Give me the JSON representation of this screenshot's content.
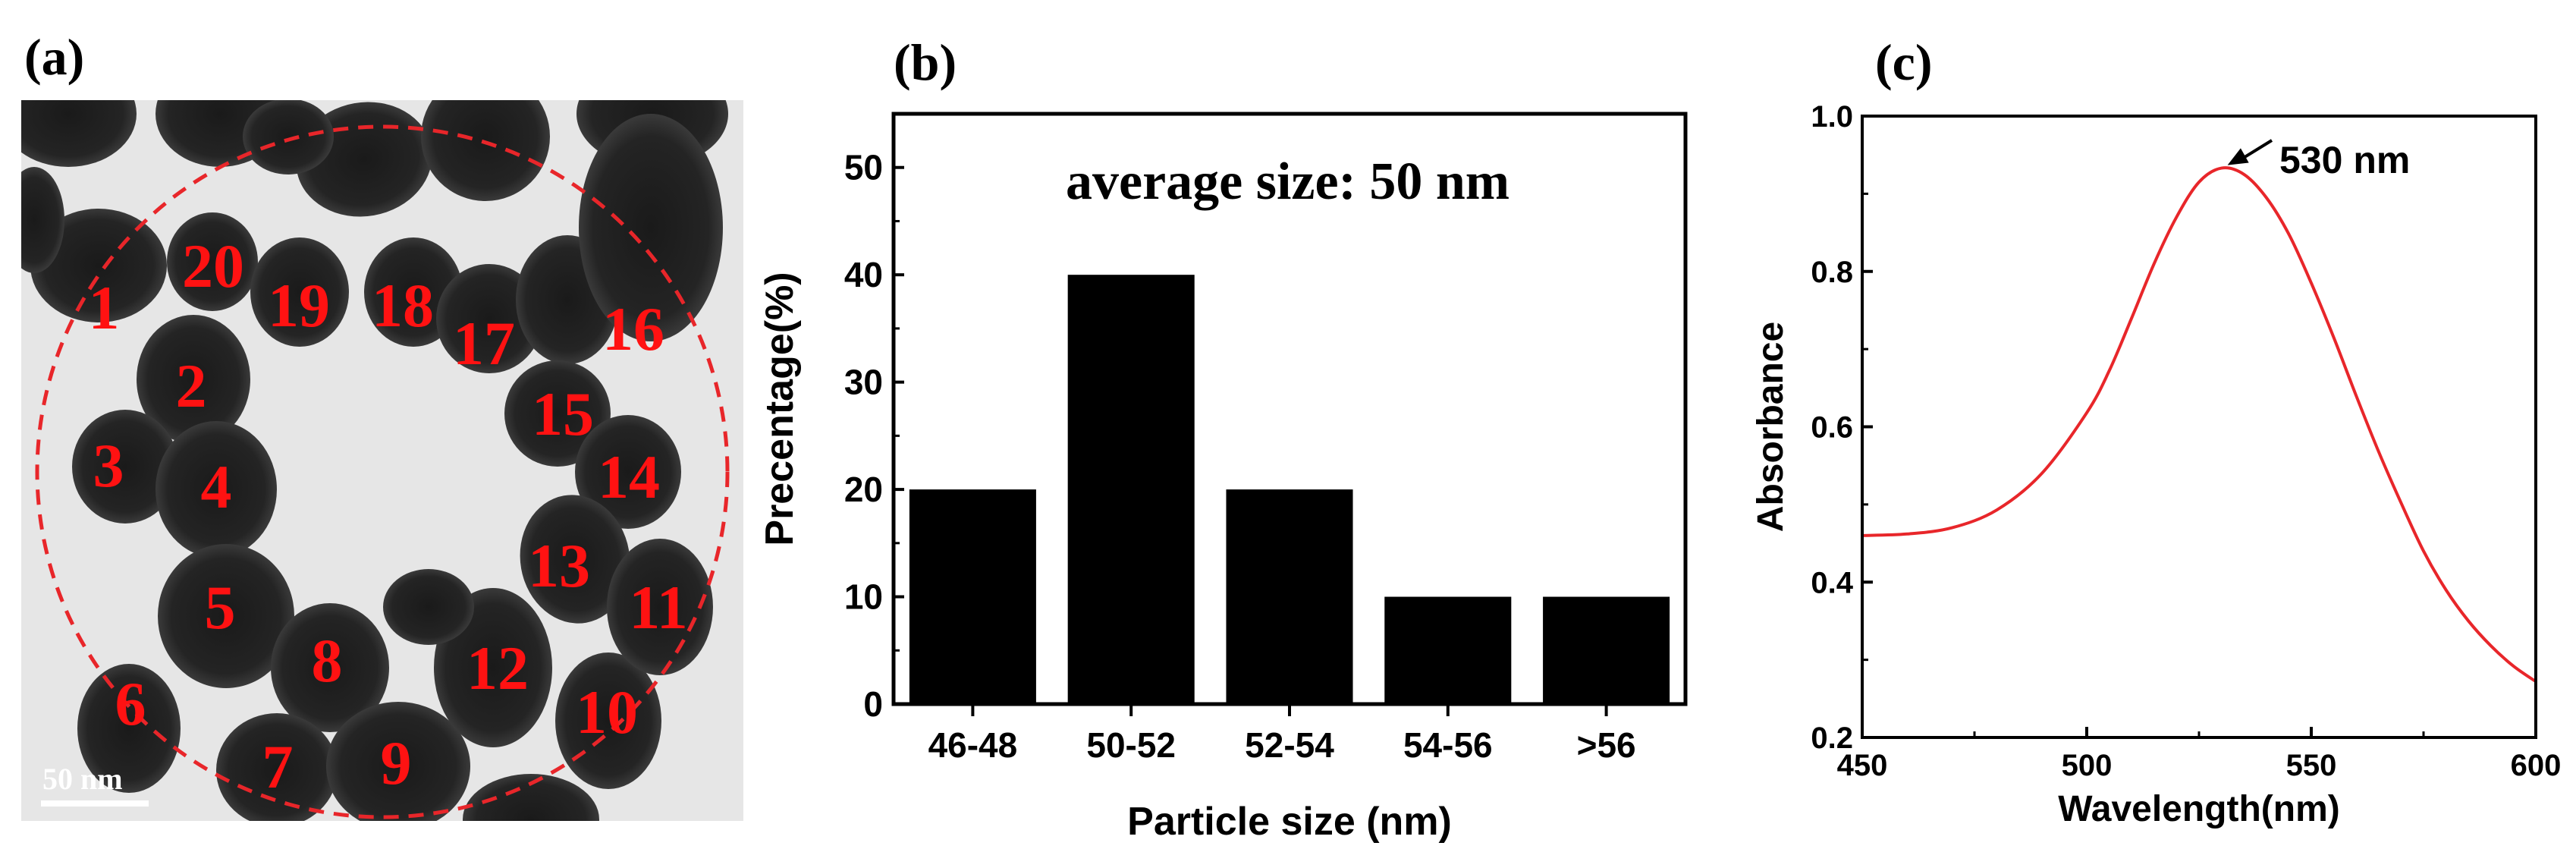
{
  "panels": {
    "a": {
      "label": "(a)"
    },
    "b": {
      "label": "(b)"
    },
    "c": {
      "label": "(c)"
    }
  },
  "tem": {
    "scale_bar_label": "50 nm",
    "particle_labels": [
      "1",
      "2",
      "3",
      "4",
      "5",
      "6",
      "7",
      "8",
      "9",
      "10",
      "11",
      "12",
      "13",
      "14",
      "15",
      "16",
      "17",
      "18",
      "19",
      "20"
    ],
    "circle_color": "#e8262a",
    "label_color": "#ff1212"
  },
  "chart_data": [
    {
      "type": "bar",
      "title": "",
      "annotation": "average size: 50 nm",
      "xlabel": "Particle size (nm)",
      "ylabel": "Precentage(%)",
      "categories": [
        "46-48",
        "50-52",
        "52-54",
        "54-56",
        ">56"
      ],
      "values": [
        20,
        40,
        20,
        10,
        10
      ],
      "ylim": [
        0,
        55
      ],
      "yticks": [
        0,
        10,
        20,
        30,
        40,
        50
      ],
      "bar_color": "#000000"
    },
    {
      "type": "line",
      "title": "",
      "xlabel": "Wavelength(nm)",
      "ylabel": "Absorbance",
      "xlim": [
        450,
        600
      ],
      "ylim": [
        0.2,
        1.0
      ],
      "xticks": [
        450,
        500,
        550,
        600
      ],
      "yticks": [
        0.2,
        0.4,
        0.6,
        0.8,
        1.0
      ],
      "line_color": "#e8262a",
      "series": [
        {
          "name": "Absorbance",
          "x": [
            450,
            460,
            470,
            480,
            490,
            500,
            505,
            510,
            515,
            520,
            525,
            530,
            535,
            540,
            545,
            550,
            555,
            560,
            565,
            570,
            575,
            580,
            585,
            590,
            595,
            600
          ],
          "y": [
            0.46,
            0.462,
            0.47,
            0.493,
            0.54,
            0.618,
            0.672,
            0.74,
            0.81,
            0.87,
            0.915,
            0.933,
            0.925,
            0.895,
            0.848,
            0.785,
            0.715,
            0.64,
            0.568,
            0.502,
            0.44,
            0.39,
            0.35,
            0.318,
            0.292,
            0.272
          ]
        }
      ],
      "peak_annotation": "530 nm",
      "peak_x": 530,
      "peak_y": 0.933
    }
  ]
}
